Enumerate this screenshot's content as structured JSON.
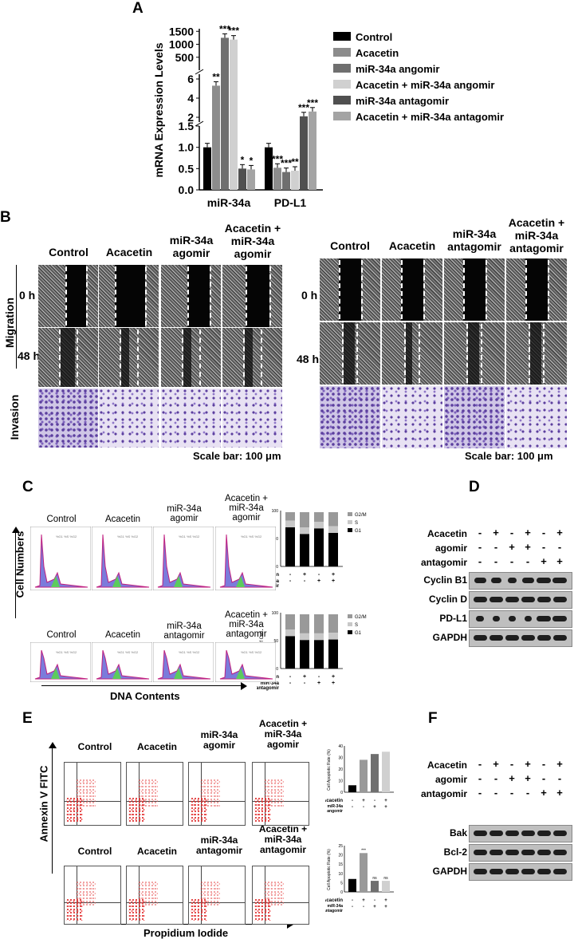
{
  "panels": {
    "A": "A",
    "B": "B",
    "C": "C",
    "D": "D",
    "E": "E",
    "F": "F"
  },
  "chart_data": {
    "type": "bar",
    "title": "",
    "ylabel": "mRNA Expression Levels",
    "categories": [
      "miR-34a",
      "PD-L1"
    ],
    "yticks": [
      "0.0",
      "0.5",
      "1.0",
      "1.5",
      "2",
      "4",
      "6",
      "500",
      "1000",
      "1500"
    ],
    "series": [
      {
        "name": "Control",
        "color": "#000000",
        "values": [
          1.0,
          1.0
        ],
        "sig": [
          "",
          ""
        ]
      },
      {
        "name": "Acacetin",
        "color": "#8c8c8c",
        "values": [
          5.3,
          0.52
        ],
        "sig": [
          "**",
          "***"
        ]
      },
      {
        "name": "miR-34a angomir",
        "color": "#6f6f6f",
        "values": [
          1250,
          0.42
        ],
        "sig": [
          "***",
          "***"
        ]
      },
      {
        "name": "Acacetin + miR-34a angomir",
        "color": "#d0d0d0",
        "values": [
          1180,
          0.45
        ],
        "sig": [
          "***",
          "**"
        ]
      },
      {
        "name": "miR-34a antagomir",
        "color": "#505050",
        "values": [
          0.5,
          2.1
        ],
        "sig": [
          "*",
          "***"
        ]
      },
      {
        "name": "Acacetin + miR-34a antagomir",
        "color": "#a4a4a4",
        "values": [
          0.48,
          2.6
        ],
        "sig": [
          "*",
          "***"
        ]
      }
    ]
  },
  "B": {
    "left_conditions": [
      "Control",
      "Acacetin",
      "miR-34a\nagomir",
      "Acacetin +\nmiR-34a\nagomir"
    ],
    "right_conditions": [
      "Control",
      "Acacetin",
      "miR-34a\nantagomir",
      "Acacetin +\nmiR-34a\nantagomir"
    ],
    "migration": "Migration",
    "invasion": "Invasion",
    "t0": "0 h",
    "t48": "48 h",
    "scalebar": "Scale bar: 100 μm"
  },
  "C": {
    "top_conditions": [
      "Control",
      "Acacetin",
      "miR-34a\nagomir",
      "Acacetin +\nmiR-34a\nagomir"
    ],
    "bottom_conditions": [
      "Control",
      "Acacetin",
      "miR-34a\nantagomir",
      "Acacetin +\nmiR-34a\nantagomir"
    ],
    "ylabel": "Cell Numbers",
    "xlabel": "DNA Contents",
    "bar_ylabel": "% of Cell",
    "legend": [
      "G2/M",
      "S",
      "G1"
    ],
    "row1": "Acacetin",
    "row2_top": "miR-34a\nangomir",
    "row2_bottom": "miR-34a\nantagomir",
    "top_signs": [
      "-",
      "+",
      "-",
      "+",
      "-",
      "-",
      "+",
      "+"
    ],
    "bottom_signs": [
      "-",
      "+",
      "-",
      "+",
      "-",
      "-",
      "+",
      "+"
    ],
    "top_g1": [
      70,
      58,
      68,
      60
    ],
    "bottom_g1": [
      58,
      51,
      51,
      52
    ]
  },
  "D": {
    "rows": [
      "Acacetin",
      "agomir",
      "antagomir"
    ],
    "signs": [
      [
        "-",
        "+",
        "-",
        "+",
        "-",
        "+"
      ],
      [
        "-",
        "-",
        "+",
        "+",
        "-",
        "-"
      ],
      [
        "-",
        "-",
        "-",
        "-",
        "+",
        "+"
      ]
    ],
    "blots": [
      "Cyclin B1",
      "Cyclin D",
      "PD-L1",
      "GAPDH"
    ]
  },
  "E": {
    "top_conditions": [
      "Control",
      "Acacetin",
      "miR-34a\nagomir",
      "Acacetin +\nmiR-34a\nagomir"
    ],
    "bottom_conditions": [
      "Control",
      "Acacetin",
      "miR-34a\nantagomir",
      "Acacetin +\nmiR-34a\nantagomir"
    ],
    "ylabel": "Annexin V FITC",
    "xlabel": "Propidium Iodide",
    "bar_ylabel": "Cell Apoptotic Rate (%)",
    "top_values": [
      6,
      28,
      33,
      35
    ],
    "bottom_values": [
      7,
      21,
      6,
      6
    ],
    "bottom_sig": [
      "",
      "***",
      "ns",
      "ns"
    ],
    "top_ticks": [
      "0",
      "10",
      "20",
      "30",
      "40"
    ],
    "bottom_ticks": [
      "0",
      "5",
      "10",
      "15",
      "20",
      "25"
    ],
    "row1": "Acacetin",
    "row2_top": "miR-34a\nangomir",
    "row2_bottom": "miR-34a\nantagomir",
    "signs": [
      "-",
      "+",
      "-",
      "+",
      "-",
      "-",
      "+",
      "+"
    ]
  },
  "F": {
    "rows": [
      "Acacetin",
      "agomir",
      "antagomir"
    ],
    "signs": [
      [
        "-",
        "+",
        "-",
        "+",
        "-",
        "+"
      ],
      [
        "-",
        "-",
        "+",
        "+",
        "-",
        "-"
      ],
      [
        "-",
        "-",
        "-",
        "-",
        "+",
        "+"
      ]
    ],
    "blots": [
      "Bak",
      "Bcl-2",
      "GAPDH"
    ]
  }
}
